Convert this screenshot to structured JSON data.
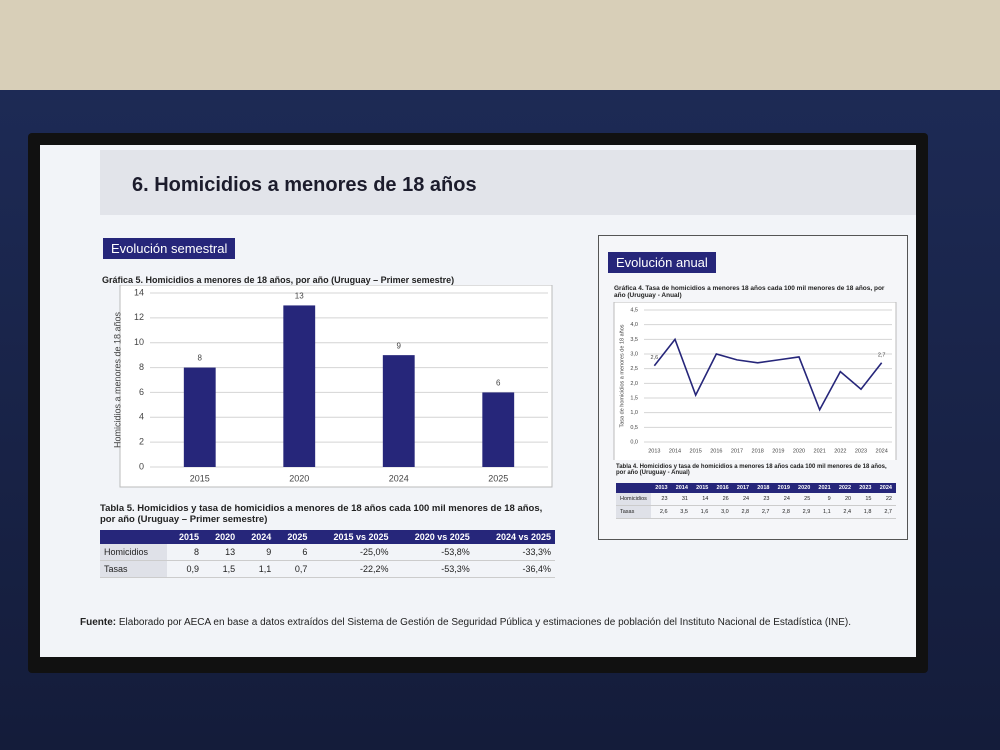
{
  "slide": {
    "title": "6. Homicidios a menores de 18 años",
    "footer": {
      "label": "Fuente:",
      "text": "Elaborado por AECA en base a datos extraídos del Sistema de Gestión de Seguridad Pública y estimaciones de población del Instituto Nacional de Estadística (INE)."
    }
  },
  "left": {
    "section": "Evolución semestral",
    "table": {
      "title": "Tabla 5. Homicidios y tasa de homicidios a menores de 18 años cada 100 mil menores de 18 años, por año (Uruguay – Primer semestre)",
      "header": [
        "2015",
        "2020",
        "2024",
        "2025",
        "2015 vs 2025",
        "2020 vs 2025",
        "2024 vs 2025"
      ],
      "rows": [
        [
          "Homicidios",
          "8",
          "13",
          "9",
          "6",
          "-25,0%",
          "-53,8%",
          "-33,3%"
        ],
        [
          "Tasas",
          "0,9",
          "1,5",
          "1,1",
          "0,7",
          "-22,2%",
          "-53,3%",
          "-36,4%"
        ]
      ]
    }
  },
  "right": {
    "section": "Evolución anual",
    "table": {
      "title": "Tabla 4. Homicidios y tasa de homicidios a menores 18 años cada 100 mil menores de 18 años, por año (Uruguay - Anual)",
      "header": [
        "2013",
        "2014",
        "2015",
        "2016",
        "2017",
        "2018",
        "2019",
        "2020",
        "2021",
        "2022",
        "2023",
        "2024"
      ],
      "rows": [
        [
          "Homicidios",
          "23",
          "31",
          "14",
          "26",
          "24",
          "23",
          "24",
          "25",
          "9",
          "20",
          "15",
          "22"
        ],
        [
          "Tasas",
          "2,6",
          "3,5",
          "1,6",
          "3,0",
          "2,8",
          "2,7",
          "2,8",
          "2,9",
          "1,1",
          "2,4",
          "1,8",
          "2,7"
        ]
      ]
    }
  },
  "chart_data": [
    {
      "type": "bar",
      "title": "Gráfica 5. Homicidios a menores de 18 años, por año (Uruguay – Primer semestre)",
      "ylabel": "Homicidios a menores de 18 años",
      "categories": [
        "2015",
        "2020",
        "2024",
        "2025"
      ],
      "values": [
        8,
        13,
        9,
        6
      ],
      "color": "#26267a",
      "ylim": [
        0,
        14
      ],
      "yticks": [
        0,
        2,
        4,
        6,
        8,
        10,
        12,
        14
      ],
      "grid": true
    },
    {
      "type": "line",
      "title": "Gráfica 4. Tasa de homicidios a menores 18 años cada 100 mil menores de 18 años, por año (Uruguay - Anual)",
      "ylabel": "Tasa de homicidios a menores de 18 años",
      "categories": [
        "2013",
        "2014",
        "2015",
        "2016",
        "2017",
        "2018",
        "2019",
        "2020",
        "2021",
        "2022",
        "2023",
        "2024"
      ],
      "values": [
        2.6,
        3.5,
        1.6,
        3.0,
        2.8,
        2.7,
        2.8,
        2.9,
        1.1,
        2.4,
        1.8,
        2.7
      ],
      "value_labels": [
        "2,6",
        null,
        null,
        null,
        null,
        null,
        null,
        null,
        null,
        null,
        null,
        "2,7"
      ],
      "color": "#26267a",
      "ylim": [
        0,
        4.5
      ],
      "yticks": [
        {
          "value": 0,
          "label": "0,0"
        },
        {
          "value": 0.5,
          "label": "0,5"
        },
        {
          "value": 1,
          "label": "1,0"
        },
        {
          "value": 1.5,
          "label": "1,5"
        },
        {
          "value": 2,
          "label": "2,0"
        },
        {
          "value": 2.5,
          "label": "2,5"
        },
        {
          "value": 3,
          "label": "3,0"
        },
        {
          "value": 3.5,
          "label": "3,5"
        },
        {
          "value": 4,
          "label": "4,0"
        },
        {
          "value": 4.5,
          "label": "4,5"
        }
      ],
      "grid": true
    }
  ]
}
